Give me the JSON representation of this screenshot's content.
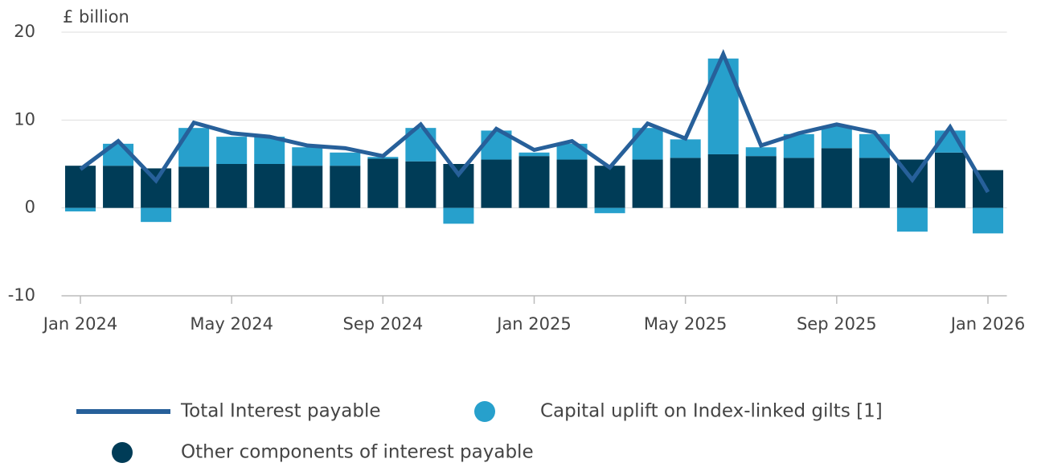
{
  "chart_data": {
    "type": "bar",
    "y_label": "£ billion",
    "categories": [
      "Jan 2024",
      null,
      null,
      null,
      "May 2024",
      null,
      null,
      null,
      "Sep 2024",
      null,
      null,
      null,
      "Jan 2025",
      null,
      null,
      null,
      "May 2025",
      null,
      null,
      null,
      "Sep 2025",
      null,
      null,
      null,
      "Jan 2026"
    ],
    "series": [
      {
        "name": "Other components of interest payable",
        "color": "#003c57",
        "kind": "bar",
        "values": [
          4.8,
          4.8,
          4.5,
          4.7,
          5.0,
          5.0,
          4.8,
          4.8,
          5.6,
          5.3,
          5.0,
          5.5,
          5.9,
          5.5,
          4.8,
          5.5,
          5.7,
          6.1,
          5.9,
          5.7,
          6.8,
          5.7,
          5.5,
          6.3,
          4.3
        ]
      },
      {
        "name": "Capital uplift on Index-linked gilts [1]",
        "color": "#27a0cc",
        "kind": "bar",
        "values": [
          -0.4,
          2.5,
          -1.6,
          4.4,
          3.1,
          3.1,
          2.1,
          1.5,
          0.2,
          3.8,
          -1.8,
          3.3,
          0.4,
          1.8,
          -0.6,
          3.6,
          2.1,
          10.9,
          1.0,
          2.7,
          2.5,
          2.7,
          -2.7,
          2.5,
          -2.9
        ]
      },
      {
        "name": "Total Interest payable",
        "color": "#27609a",
        "kind": "line",
        "values": [
          4.4,
          7.6,
          3.1,
          9.7,
          8.5,
          8.1,
          7.1,
          6.8,
          5.9,
          9.5,
          3.8,
          9.0,
          6.6,
          7.6,
          4.6,
          9.6,
          7.9,
          17.5,
          7.1,
          8.5,
          9.5,
          8.6,
          3.2,
          9.2,
          1.8
        ]
      }
    ],
    "ylim": [
      -10,
      20
    ],
    "yticks": [
      -10,
      0,
      10,
      20
    ],
    "grid": true
  }
}
